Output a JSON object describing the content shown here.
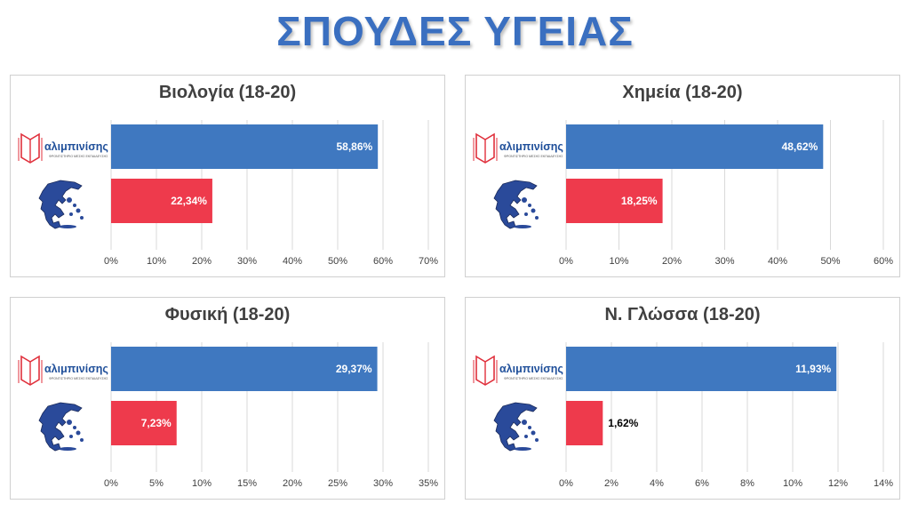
{
  "title": "ΣΠΟΥΔΕΣ ΥΓΕΙΑΣ",
  "colors": {
    "title": "#3a6fc0",
    "school_bar": "#3f78c0",
    "greece_bar": "#ee3a4c",
    "grid": "#d9d9d9",
    "text": "#404040"
  },
  "logo": {
    "name": "αλιμπινίσης",
    "tagline": "ΦΡΟΝΤΙΣΤΗΡΙΟ ΜΕΣΗΣ ΕΚΠΑΙΔΕΥΣΗΣ"
  },
  "chart_data": [
    {
      "type": "bar",
      "orientation": "horizontal",
      "title": "Βιολογία (18-20)",
      "categories": [
        "αλιμπινίσης",
        "Ελλάδα"
      ],
      "values": [
        58.86,
        22.34
      ],
      "value_labels": [
        "58,86%",
        "22,34%"
      ],
      "xlim": [
        0,
        70
      ],
      "xticks": [
        "0%",
        "10%",
        "20%",
        "30%",
        "40%",
        "50%",
        "60%",
        "70%"
      ],
      "xtick_step": 10,
      "grid": true
    },
    {
      "type": "bar",
      "orientation": "horizontal",
      "title": "Χημεία (18-20)",
      "categories": [
        "αλιμπινίσης",
        "Ελλάδα"
      ],
      "values": [
        48.62,
        18.25
      ],
      "value_labels": [
        "48,62%",
        "18,25%"
      ],
      "xlim": [
        0,
        60
      ],
      "xticks": [
        "0%",
        "10%",
        "20%",
        "30%",
        "40%",
        "50%",
        "60%"
      ],
      "xtick_step": 10,
      "grid": true
    },
    {
      "type": "bar",
      "orientation": "horizontal",
      "title": "Φυσική (18-20)",
      "categories": [
        "αλιμπινίσης",
        "Ελλάδα"
      ],
      "values": [
        29.37,
        7.23
      ],
      "value_labels": [
        "29,37%",
        "7,23%"
      ],
      "xlim": [
        0,
        35
      ],
      "xticks": [
        "0%",
        "5%",
        "10%",
        "15%",
        "20%",
        "25%",
        "30%",
        "35%"
      ],
      "xtick_step": 5,
      "grid": true
    },
    {
      "type": "bar",
      "orientation": "horizontal",
      "title": "Ν. Γλώσσα (18-20)",
      "categories": [
        "αλιμπινίσης",
        "Ελλάδα"
      ],
      "values": [
        11.93,
        1.62
      ],
      "value_labels": [
        "11,93%",
        "1,62%"
      ],
      "xlim": [
        0,
        14
      ],
      "xticks": [
        "0%",
        "2%",
        "4%",
        "6%",
        "8%",
        "10%",
        "12%",
        "14%"
      ],
      "xtick_step": 2,
      "grid": true
    }
  ]
}
